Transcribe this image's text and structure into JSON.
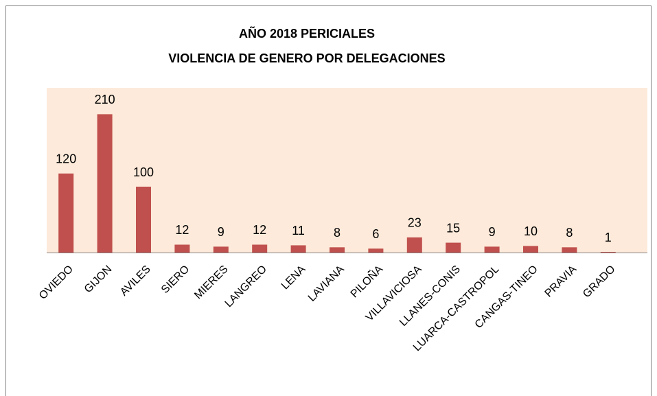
{
  "chart_data": {
    "type": "bar",
    "title": "AÑO 2018  PERICIALES",
    "subtitle": "VIOLENCIA DE GENERO POR DELEGACIONES",
    "categories": [
      "OVIEDO",
      "GIJON",
      "AVILES",
      "SIERO",
      "MIERES",
      "LANGREO",
      "LENA",
      "LAVIANA",
      "PILOÑA",
      "VILLAVICIOSA",
      "LLANES-CONIS",
      "LUARCA-CASTROPOL",
      "CANGAS-TINEO",
      "PRAVIA",
      "GRADO"
    ],
    "values": [
      120,
      210,
      100,
      12,
      9,
      12,
      11,
      8,
      6,
      23,
      15,
      9,
      10,
      8,
      1
    ],
    "color": "#c0504d",
    "ylim": [
      0,
      250
    ]
  }
}
